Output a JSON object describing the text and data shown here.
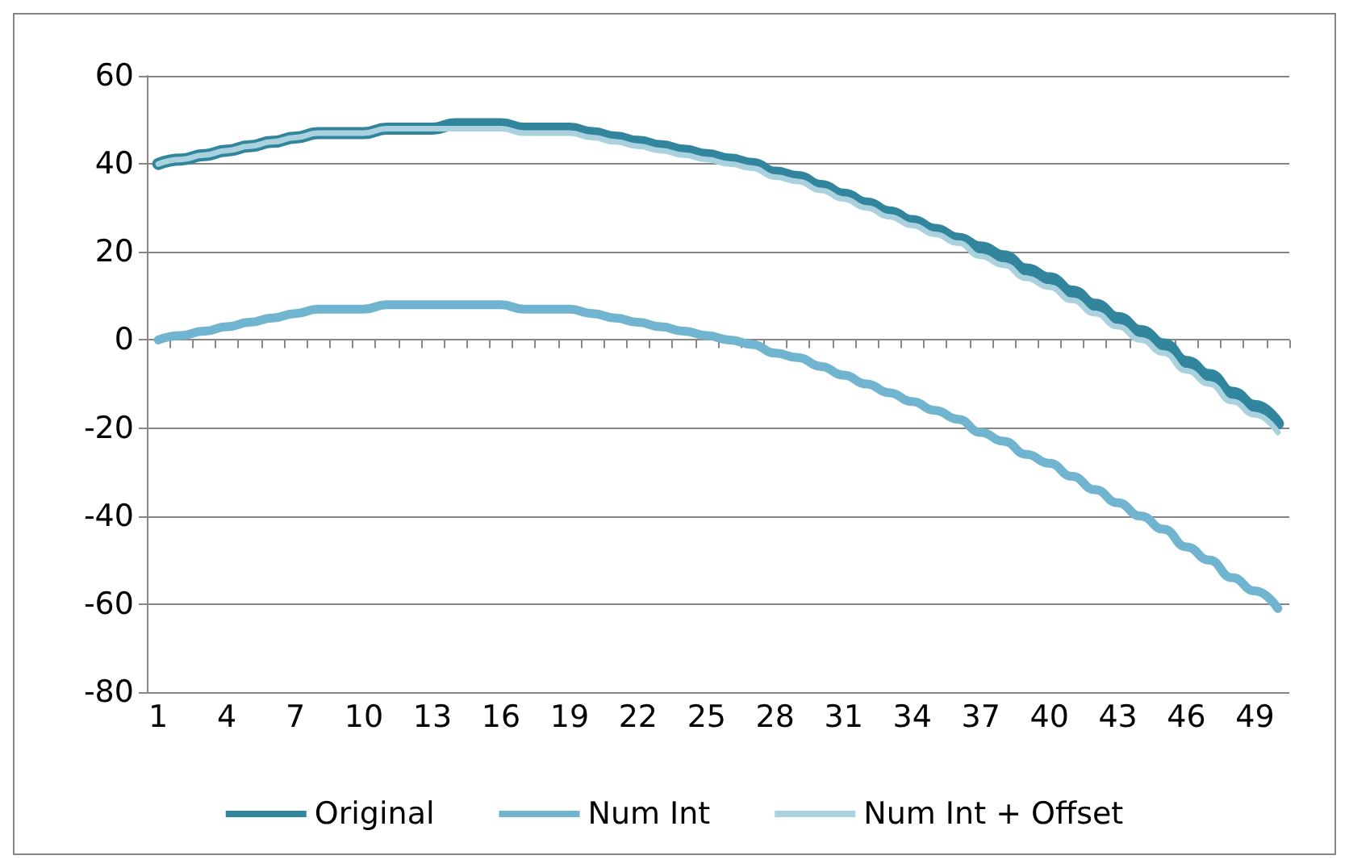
{
  "chart_data": {
    "type": "line",
    "categories": [
      "1",
      null,
      null,
      "4",
      null,
      null,
      "7",
      null,
      null,
      "10",
      null,
      null,
      "13",
      null,
      null,
      "16",
      null,
      null,
      "19",
      null,
      null,
      "22",
      null,
      null,
      "25",
      null,
      null,
      "28",
      null,
      null,
      "31",
      null,
      null,
      "34",
      null,
      null,
      "37",
      null,
      null,
      "40",
      null,
      null,
      "43",
      null,
      null,
      "46",
      null,
      null,
      "49",
      null
    ],
    "series": [
      {
        "name": "Original",
        "color": "#31859c",
        "values": [
          40,
          41,
          42,
          43,
          44,
          45,
          46,
          47,
          47,
          47,
          48,
          48,
          48,
          49,
          49,
          49,
          48,
          48,
          48,
          47,
          46,
          45,
          44,
          43,
          42,
          41,
          40,
          38,
          37,
          35,
          33,
          31,
          29,
          27,
          25,
          23,
          21,
          19,
          16,
          14,
          11,
          8,
          5,
          2,
          -1,
          -5,
          -8,
          -12,
          -15,
          -19
        ]
      },
      {
        "name": "Num Int",
        "color": "#71b4cf",
        "values": [
          0,
          1,
          2,
          3,
          4,
          5,
          6,
          7,
          7,
          7,
          8,
          8,
          8,
          8,
          8,
          8,
          7,
          7,
          7,
          6,
          5,
          4,
          3,
          2,
          1,
          0,
          -1,
          -3,
          -4,
          -6,
          -8,
          -10,
          -12,
          -14,
          -16,
          -18,
          -21,
          -23,
          -26,
          -28,
          -31,
          -34,
          -37,
          -40,
          -43,
          -47,
          -50,
          -54,
          -57,
          -61
        ]
      },
      {
        "name": "Num Int + Offset",
        "color": "#a9d1de",
        "values": [
          40,
          41,
          42,
          43,
          44,
          45,
          46,
          47,
          47,
          47,
          48,
          48,
          48,
          48,
          48,
          48,
          47,
          47,
          47,
          46,
          45,
          44,
          43,
          42,
          41,
          40,
          39,
          37,
          36,
          34,
          32,
          30,
          28,
          26,
          24,
          22,
          19,
          17,
          14,
          12,
          9,
          6,
          3,
          0,
          -3,
          -7,
          -10,
          -14,
          -17,
          -21
        ]
      }
    ],
    "ylim": [
      -80,
      60
    ],
    "yticks": [
      -80,
      -60,
      -40,
      -20,
      0,
      20,
      40,
      60
    ],
    "grid": "y",
    "legend": "bottom",
    "marker": "none",
    "line_style": "solid"
  }
}
